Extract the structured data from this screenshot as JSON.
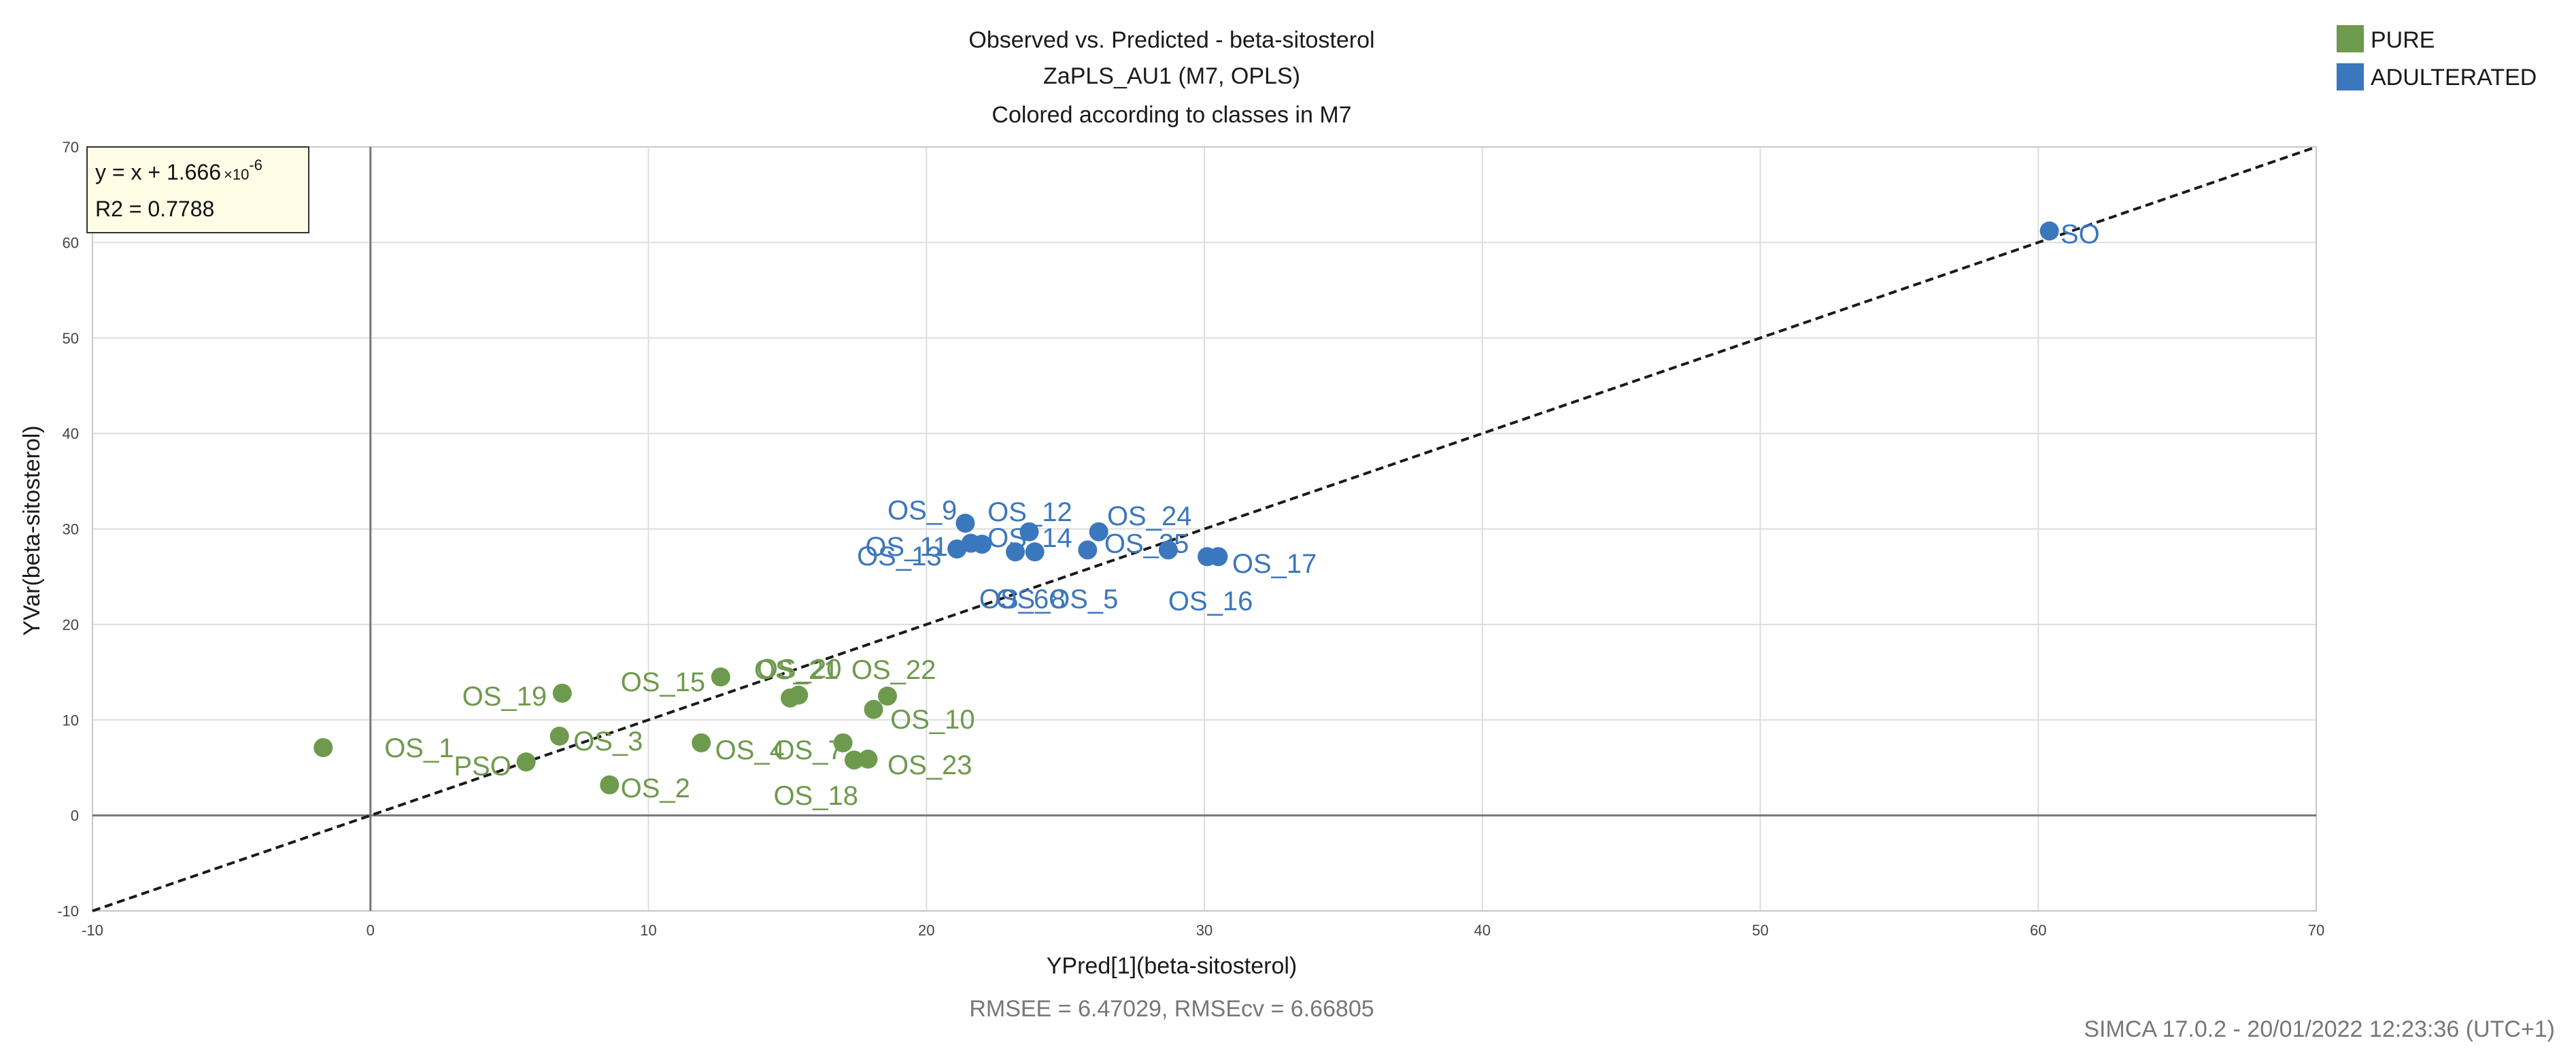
{
  "chart_data": {
    "type": "scatter",
    "title": "Observed vs. Predicted - beta-sitosterol",
    "subtitle": "ZaPLS_AU1 (M7, OPLS)",
    "subtitle2": "Colored according to classes in M7",
    "xlabel": "YPred[1](beta-sitosterol)",
    "ylabel": "YVar(beta-sitosterol)",
    "xlim": [
      -10,
      70
    ],
    "ylim": [
      -10,
      70
    ],
    "xticks": [
      -10,
      0,
      10,
      20,
      30,
      40,
      50,
      60,
      70
    ],
    "yticks": [
      -10,
      0,
      10,
      20,
      30,
      40,
      50,
      60,
      70
    ],
    "grid": true,
    "legend_position": "top-right",
    "fit_line": {
      "slope": 1,
      "intercept": 1.666e-06
    },
    "equation": {
      "text": "y = x + 1.666",
      "multiplier": "×10",
      "exponent": "-6"
    },
    "r2_text": "R2 = 0.7788",
    "footer": "RMSEE = 6.47029, RMSEcv = 6.66805",
    "timestamp": "SIMCA 17.0.2 - 20/01/2022 12:23:36 (UTC+1)",
    "series": [
      {
        "name": "PURE",
        "color": "#6e9a4d",
        "points": [
          {
            "label": "OS_1",
            "x": -1.7,
            "y": 7.1,
            "lx": 0.5,
            "ly": 7.1
          },
          {
            "label": "PSO",
            "x": 5.6,
            "y": 5.6,
            "lx": 3.0,
            "ly": 5.2
          },
          {
            "label": "OS_2",
            "x": 8.6,
            "y": 3.2,
            "lx": 9.0,
            "ly": 2.9
          },
          {
            "label": "OS_3",
            "x": 6.8,
            "y": 8.3,
            "lx": 7.3,
            "ly": 7.8
          },
          {
            "label": "OS_19",
            "x": 6.9,
            "y": 12.8,
            "lx": 3.3,
            "ly": 12.5
          },
          {
            "label": "OS_15",
            "x": 12.6,
            "y": 14.5,
            "lx": 9.0,
            "ly": 14.0
          },
          {
            "label": "OS_4",
            "x": 11.9,
            "y": 7.6,
            "lx": 12.4,
            "ly": 6.9
          },
          {
            "label": "OS_7",
            "x": 17.0,
            "y": 7.6,
            "lx": 14.5,
            "ly": 6.9
          },
          {
            "label": "OS_18",
            "x": 17.4,
            "y": 5.8,
            "lx": 14.5,
            "ly": 2.1
          },
          {
            "label": "OS_23",
            "x": 17.9,
            "y": 5.9,
            "lx": 18.6,
            "ly": 5.3
          },
          {
            "label": "OS_10",
            "x": 18.1,
            "y": 11.1,
            "lx": 18.7,
            "ly": 10.1
          },
          {
            "label": "OS_21",
            "x": 15.1,
            "y": 12.3,
            "lx": 13.8,
            "ly": 15.3
          },
          {
            "label": "OS_20",
            "x": 15.4,
            "y": 12.6,
            "lx": 13.9,
            "ly": 15.4
          },
          {
            "label": "OS_22",
            "x": 18.6,
            "y": 12.5,
            "lx": 17.3,
            "ly": 15.3
          }
        ]
      },
      {
        "name": "ADULTERATED",
        "color": "#3b77bd",
        "points": [
          {
            "label": "SO",
            "x": 60.4,
            "y": 61.2,
            "lx": 60.8,
            "ly": 60.9
          },
          {
            "label": "OS_9",
            "x": 21.4,
            "y": 30.6,
            "lx": 18.6,
            "ly": 32.0
          },
          {
            "label": "OS_11",
            "x": 21.6,
            "y": 28.5,
            "lx": 17.8,
            "ly": 28.2
          },
          {
            "label": "OS_13",
            "x": 21.1,
            "y": 27.9,
            "lx": 17.5,
            "ly": 27.2
          },
          {
            "label": "OS_12",
            "x": 23.7,
            "y": 29.7,
            "lx": 22.2,
            "ly": 31.8
          },
          {
            "label": "OS_14",
            "x": 22.0,
            "y": 28.4,
            "lx": 22.2,
            "ly": 29.1
          },
          {
            "label": "OS_24",
            "x": 26.2,
            "y": 29.7,
            "lx": 26.5,
            "ly": 31.4
          },
          {
            "label": "OS_25",
            "x": 25.8,
            "y": 27.8,
            "lx": 26.4,
            "ly": 28.5
          },
          {
            "label": "OS_6",
            "x": 23.2,
            "y": 27.6,
            "lx": 21.9,
            "ly": 22.7
          },
          {
            "label": "OS_8",
            "x": 23.9,
            "y": 27.6,
            "lx": 22.5,
            "ly": 22.7
          },
          {
            "label": "OS_5",
            "x": 28.7,
            "y": 27.8,
            "lx": 24.4,
            "ly": 22.7
          },
          {
            "label": "OS_16",
            "x": 30.1,
            "y": 27.1,
            "lx": 28.7,
            "ly": 22.5
          },
          {
            "label": "OS_17",
            "x": 30.5,
            "y": 27.1,
            "lx": 31.0,
            "ly": 26.4
          }
        ]
      }
    ]
  }
}
